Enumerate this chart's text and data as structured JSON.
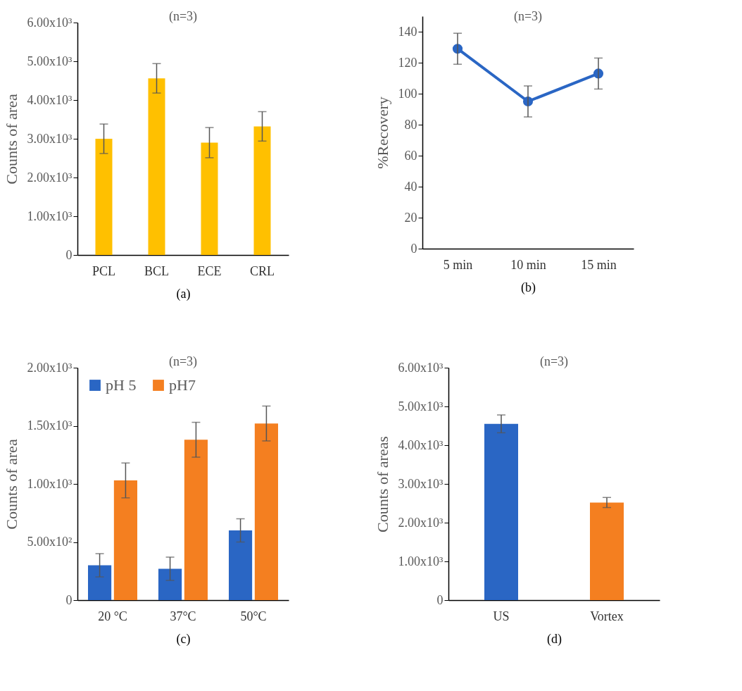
{
  "chart_data": [
    {
      "type": "bar",
      "title": "(n=3)",
      "xlabel": "(a)",
      "ylabel": "Counts of area",
      "categories": [
        "PCL",
        "BCL",
        "ECE",
        "CRL"
      ],
      "values": [
        3000,
        4560,
        2900,
        3320
      ],
      "errors": [
        380,
        380,
        390,
        380
      ],
      "color": "#ffc000",
      "ylim": [
        0,
        6000
      ],
      "yticks": [
        0,
        {
          "value": 1000,
          "label": "1.00x10³"
        },
        {
          "value": 2000,
          "label": "2.00x10³"
        },
        {
          "value": 3000,
          "label": "3.00x10³"
        },
        {
          "value": 4000,
          "label": "4.00x10³"
        },
        {
          "value": 5000,
          "label": "5.00x10³"
        },
        {
          "value": 6000,
          "label": "6.00x10³"
        }
      ]
    },
    {
      "type": "line",
      "title": "(n=3)",
      "xlabel": "(b)",
      "ylabel": "%Recovery",
      "categories": [
        "5 min",
        "10 min",
        "15 min"
      ],
      "values": [
        129,
        95,
        113
      ],
      "errors": [
        10,
        10,
        10
      ],
      "color": "#2a66c4",
      "marker": "circle",
      "ylim": [
        0,
        150
      ],
      "yticks": [
        0,
        20,
        40,
        60,
        80,
        100,
        120,
        140
      ]
    },
    {
      "type": "bar",
      "title": "(n=3)",
      "xlabel": "(c)",
      "ylabel": "Counts of area",
      "categories": [
        "20 °C",
        "37°C",
        "50°C"
      ],
      "legend": "top left",
      "series": [
        {
          "name": "pH 5",
          "color": "#2a66c4",
          "values": [
            300,
            270,
            600
          ],
          "errors": [
            100,
            100,
            100
          ]
        },
        {
          "name": "pH7",
          "color": "#f47f20",
          "values": [
            1030,
            1380,
            1520
          ],
          "errors": [
            150,
            150,
            150
          ]
        }
      ],
      "ylim": [
        0,
        2000
      ],
      "yticks": [
        0,
        {
          "value": 500,
          "label": "5.00x10²"
        },
        {
          "value": 1000,
          "label": "1.00x10³"
        },
        {
          "value": 1500,
          "label": "1.50x10³"
        },
        {
          "value": 2000,
          "label": "2.00x10³"
        }
      ]
    },
    {
      "type": "bar",
      "title": "(n=3)",
      "xlabel": "(d)",
      "ylabel": "Counts of areas",
      "categories": [
        "US",
        "Vortex"
      ],
      "values": [
        4550,
        2520
      ],
      "errors": [
        230,
        130
      ],
      "colors": [
        "#2a66c4",
        "#f47f20"
      ],
      "ylim": [
        0,
        6000
      ],
      "yticks": [
        0,
        {
          "value": 1000,
          "label": "1.00x10³"
        },
        {
          "value": 2000,
          "label": "2.00x10³"
        },
        {
          "value": 3000,
          "label": "3.00x10³"
        },
        {
          "value": 4000,
          "label": "4.00x10³"
        },
        {
          "value": 5000,
          "label": "5.00x10³"
        },
        {
          "value": 6000,
          "label": "6.00x10³"
        }
      ]
    }
  ]
}
